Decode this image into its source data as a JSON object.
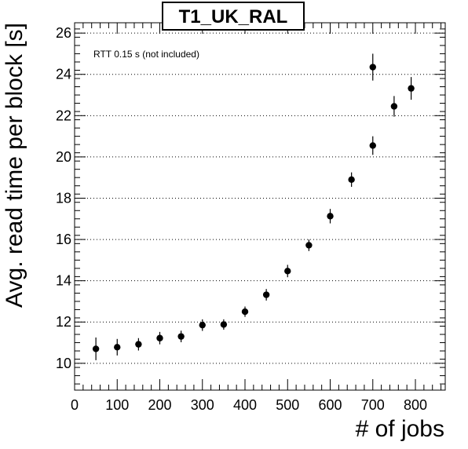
{
  "chart_data": {
    "type": "scatter",
    "title": "T1_UK_RAL",
    "xlabel": "# of jobs",
    "ylabel": "Avg. read time per block [s]",
    "annotation": "RTT 0.15 s (not included)",
    "xlim": [
      0,
      870
    ],
    "ylim": [
      8.7,
      26.5
    ],
    "x_ticks": [
      0,
      100,
      200,
      300,
      400,
      500,
      600,
      700,
      800
    ],
    "y_ticks": [
      10,
      12,
      14,
      16,
      18,
      20,
      22,
      24,
      26
    ],
    "grid": "horizontal dotted",
    "series": [
      {
        "points": [
          {
            "x": 50,
            "y": 10.7,
            "err": 0.55
          },
          {
            "x": 100,
            "y": 10.78,
            "err": 0.4
          },
          {
            "x": 150,
            "y": 10.92,
            "err": 0.3
          },
          {
            "x": 200,
            "y": 11.22,
            "err": 0.3
          },
          {
            "x": 250,
            "y": 11.3,
            "err": 0.28
          },
          {
            "x": 300,
            "y": 11.85,
            "err": 0.28
          },
          {
            "x": 350,
            "y": 11.88,
            "err": 0.25
          },
          {
            "x": 400,
            "y": 12.5,
            "err": 0.25
          },
          {
            "x": 450,
            "y": 13.32,
            "err": 0.28
          },
          {
            "x": 500,
            "y": 14.47,
            "err": 0.3
          },
          {
            "x": 550,
            "y": 15.72,
            "err": 0.28
          },
          {
            "x": 600,
            "y": 17.13,
            "err": 0.35
          },
          {
            "x": 650,
            "y": 18.9,
            "err": 0.35
          },
          {
            "x": 700,
            "y": 20.55,
            "err": 0.45
          },
          {
            "x": 700,
            "y": 24.35,
            "err": 0.65
          },
          {
            "x": 750,
            "y": 22.45,
            "err": 0.5
          },
          {
            "x": 790,
            "y": 23.32,
            "err": 0.55
          }
        ]
      }
    ],
    "colors": {
      "marker": "#000000",
      "grid": "#000000",
      "background": "#ffffff"
    }
  }
}
